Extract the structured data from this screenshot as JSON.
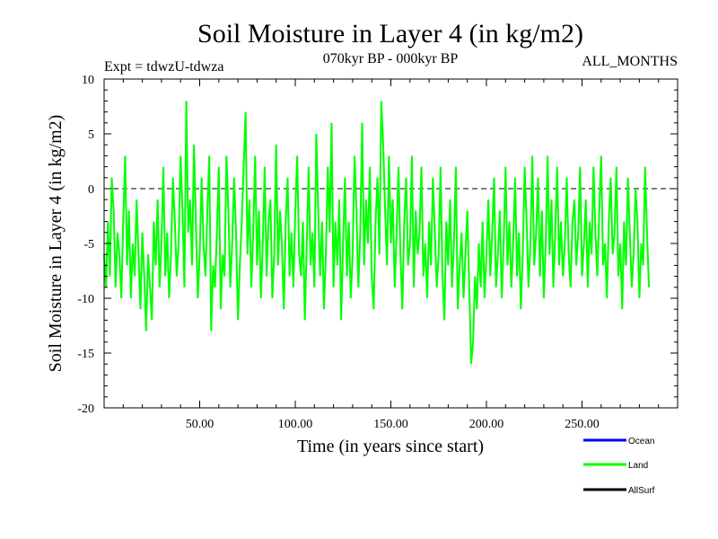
{
  "chart_data": {
    "type": "line",
    "title": "Soil Moisture in Layer 4 (in kg/m2)",
    "subtitle_left": "Expt = tdwzU-tdwza",
    "subtitle_center": "070kyr BP - 000kyr BP",
    "subtitle_right": "ALL_MONTHS",
    "xlabel": "Time (in years since start)",
    "ylabel": "Soil Moisture in Layer 4 (in kg/m2)",
    "xlim": [
      0,
      300
    ],
    "ylim": [
      -20,
      10
    ],
    "x_ticks": [
      50,
      100,
      150,
      200,
      250
    ],
    "x_tick_labels": [
      "50.00",
      "100.00",
      "150.00",
      "200.00",
      "250.00"
    ],
    "y_ticks": [
      -20,
      -15,
      -10,
      -5,
      0,
      5,
      10
    ],
    "y_tick_labels": [
      "-20",
      "-15",
      "-10",
      "-5",
      "0",
      "5",
      "10"
    ],
    "reference_line": 0,
    "grid": false,
    "legend_position": "bottom-right, below plot",
    "legend": [
      {
        "name": "Ocean",
        "color": "#0000ff"
      },
      {
        "name": "Land",
        "color": "#00ff00"
      },
      {
        "name": "AllSurf",
        "color": "#000000"
      }
    ],
    "series": [
      {
        "name": "Land",
        "color": "#00ff00",
        "x_start": 0,
        "x_step": 1,
        "y": [
          -6,
          -9,
          -3,
          -8,
          1,
          -2,
          -9,
          -4,
          -6,
          -10,
          -3,
          3,
          -7,
          -2,
          -10,
          -5,
          -8,
          -1,
          -6,
          -11,
          -4,
          -8,
          -13,
          -6,
          -9,
          -12,
          -3,
          -7,
          -1,
          -9,
          -5,
          2,
          -8,
          -4,
          -10,
          -6,
          1,
          -3,
          -8,
          -5,
          3,
          -2,
          -9,
          8,
          -4,
          -1,
          -7,
          4,
          -3,
          -10,
          -6,
          1,
          -5,
          -8,
          -2,
          3,
          -13,
          -7,
          -9,
          -4,
          2,
          -11,
          -6,
          -8,
          3,
          -2,
          -9,
          -5,
          1,
          -4,
          -12,
          -7,
          -3,
          2,
          7,
          -6,
          -1,
          -9,
          -4,
          3,
          -7,
          -2,
          -10,
          -5,
          2,
          -8,
          -3,
          -1,
          -10,
          -6,
          4,
          -7,
          -2,
          -5,
          -11,
          -3,
          1,
          -8,
          -4,
          -9,
          -2,
          3,
          -6,
          -8,
          -3,
          -12,
          -5,
          2,
          -7,
          -4,
          -9,
          5,
          -2,
          -8,
          -3,
          -11,
          -6,
          2,
          -4,
          6,
          -9,
          -3,
          -7,
          -1,
          -12,
          -5,
          1,
          -8,
          -3,
          -10,
          -6,
          3,
          -2,
          -9,
          -4,
          6,
          -7,
          -1,
          -5,
          2,
          -8,
          -11,
          -3,
          1,
          -6,
          8,
          4,
          -2,
          -7,
          3,
          -5,
          -1,
          -9,
          -4,
          2,
          -6,
          -11,
          -3,
          1,
          -7,
          -5,
          3,
          -9,
          -2,
          -6,
          -4,
          2,
          -8,
          -5,
          -10,
          -3,
          -7,
          1,
          -4,
          -9,
          -6,
          2,
          -8,
          -12,
          -3,
          -7,
          -1,
          -9,
          -5,
          2,
          -11,
          -7,
          -4,
          -10,
          -6,
          -2,
          -9,
          -16,
          -14,
          -8,
          -11,
          -5,
          -9,
          -3,
          -10,
          -6,
          -1,
          -8,
          -4,
          1,
          -9,
          -6,
          -2,
          -10,
          -5,
          2,
          -7,
          -3,
          -9,
          -5,
          1,
          -8,
          -4,
          -11,
          -6,
          2,
          -3,
          -9,
          -5,
          3,
          -7,
          -4,
          1,
          -8,
          -2,
          -10,
          -5,
          3,
          -6,
          -1,
          -9,
          -4,
          2,
          -7,
          -3,
          -8,
          -5,
          1,
          -6,
          -9,
          -3,
          -1,
          -7,
          -4,
          2,
          -8,
          -5,
          -1,
          -9,
          -3,
          -6,
          2,
          -4,
          -8,
          -2,
          3,
          -7,
          -5,
          -10,
          -3,
          1,
          -6,
          -4,
          2,
          -8,
          -5,
          -11,
          -3,
          -7,
          1,
          -4,
          -9,
          -6,
          0,
          -3,
          -10,
          -5,
          -7,
          2,
          -4,
          -9
        ]
      }
    ]
  }
}
